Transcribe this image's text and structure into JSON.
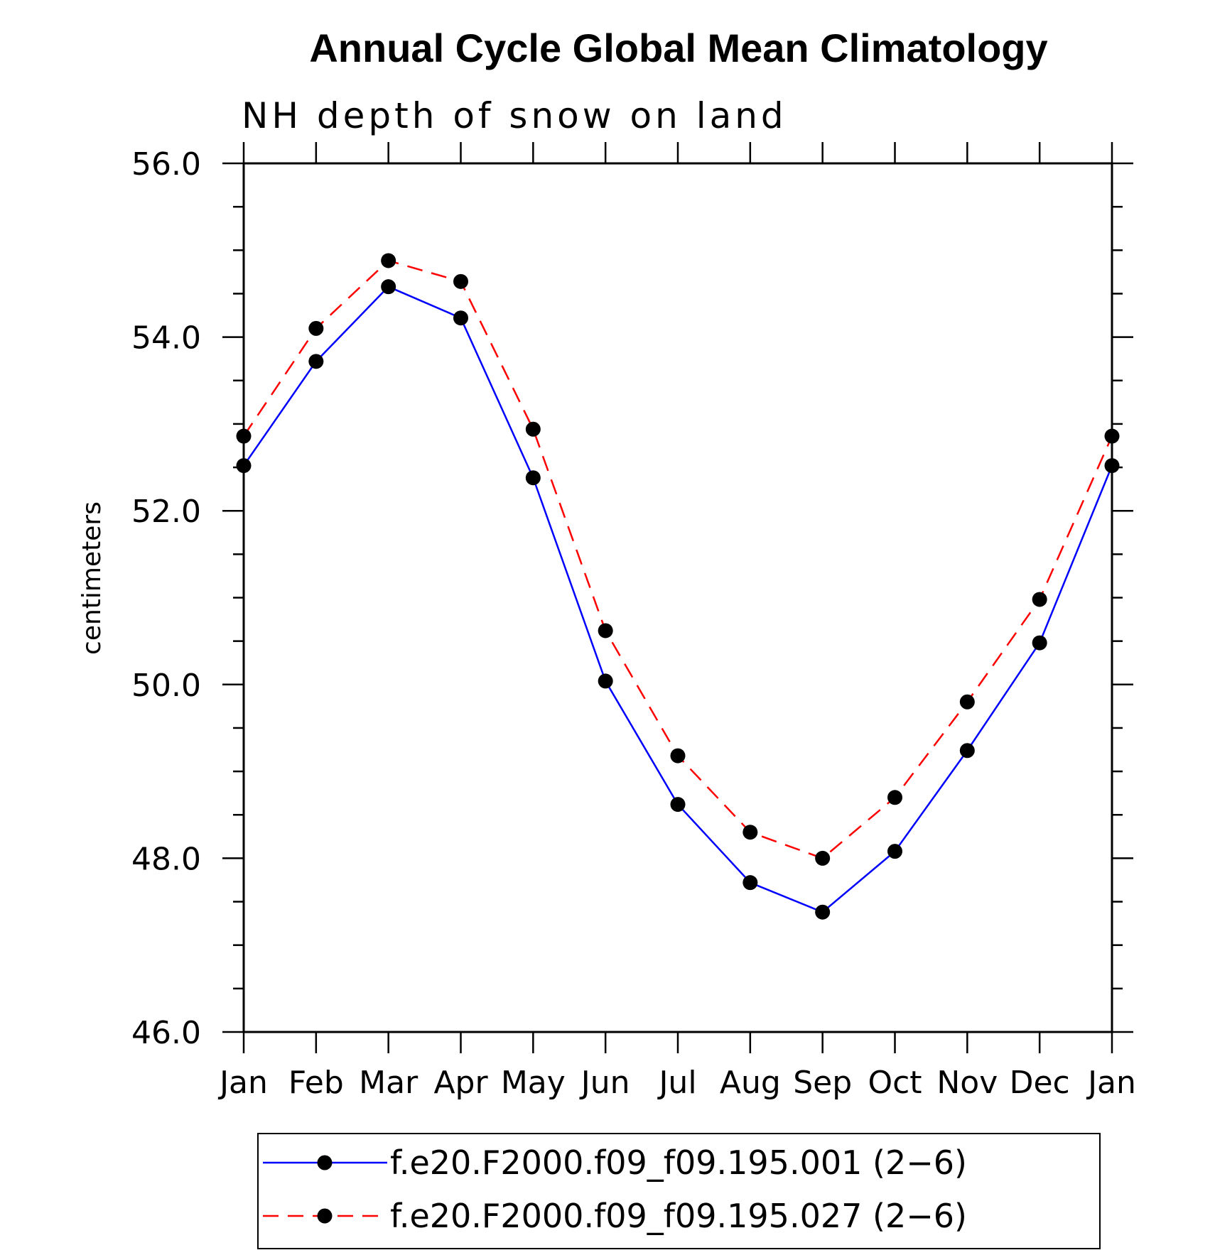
{
  "chart_data": {
    "type": "line",
    "title": "Annual Cycle Global Mean Climatology",
    "subtitle": "NH depth of snow on land",
    "ylabel": "centimeters",
    "xlabel": "",
    "categories": [
      "Jan",
      "Feb",
      "Mar",
      "Apr",
      "May",
      "Jun",
      "Jul",
      "Aug",
      "Sep",
      "Oct",
      "Nov",
      "Dec",
      "Jan"
    ],
    "ylim": [
      46.0,
      56.0
    ],
    "yticks": [
      "46.0",
      "48.0",
      "50.0",
      "52.0",
      "54.0",
      "56.0"
    ],
    "grid": false,
    "legend_position": "bottom",
    "series": [
      {
        "name": "f.e20.F2000.f09_f09.195.001 (2−6)",
        "color": "#0000ff",
        "line_style": "solid",
        "marker": "filled-circle",
        "values": [
          52.52,
          53.72,
          54.58,
          54.22,
          52.38,
          50.04,
          48.62,
          47.72,
          47.38,
          48.08,
          49.24,
          50.48,
          52.52
        ]
      },
      {
        "name": "f.e20.F2000.f09_f09.195.027 (2−6)",
        "color": "#ff0000",
        "line_style": "dashed",
        "marker": "filled-circle",
        "values": [
          52.86,
          54.1,
          54.88,
          54.64,
          52.94,
          50.62,
          49.18,
          48.3,
          48.0,
          48.7,
          49.8,
          50.98,
          52.86
        ]
      }
    ]
  }
}
